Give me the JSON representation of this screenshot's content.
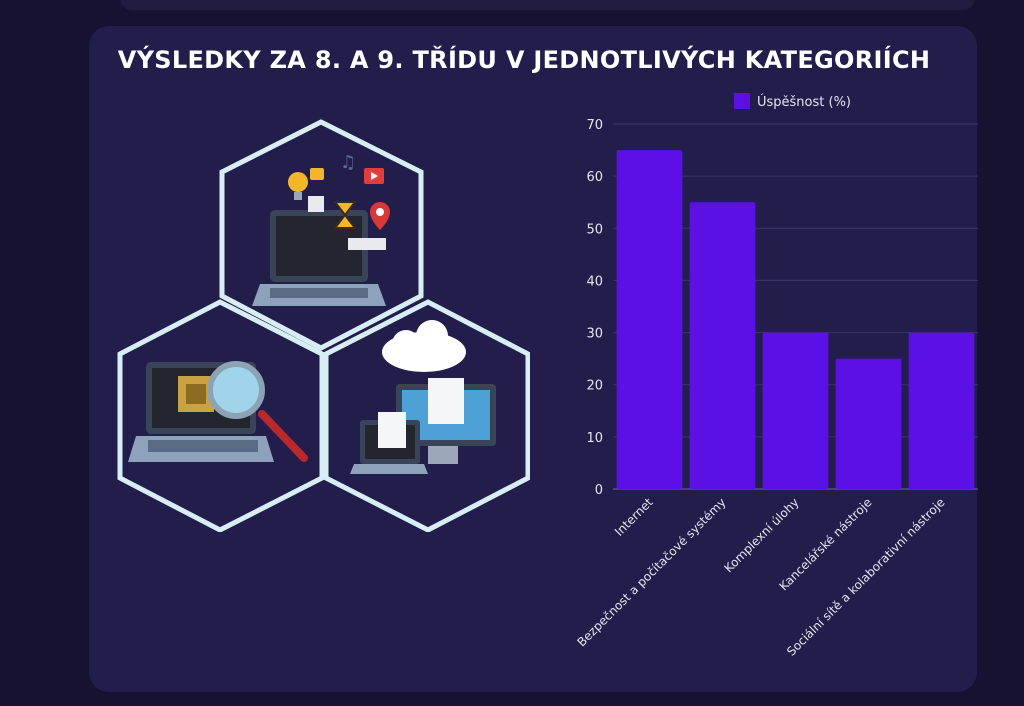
{
  "page": {
    "title": "VÝSLEDKY ZA 8. A 9. TŘÍDU V JEDNOTLIVÝCH KATEGORIÍCH"
  },
  "colors": {
    "background": "#171232",
    "card": "#231d4b",
    "bar": "#5b10e6",
    "hexagon_stroke": "#d8eef5"
  },
  "illustration": {
    "icons": [
      "laptop-apps-icon",
      "laptop-magnifier-chip-icon",
      "cloud-computers-icon"
    ]
  },
  "chart_data": {
    "type": "bar",
    "categories": [
      "Internet",
      "Bezpečnost a počítačové systémy",
      "Komplexní úlohy",
      "Kancelářské nástroje",
      "Sociální sítě a kolaborativní nástroje"
    ],
    "series": [
      {
        "name": "Úspěšnost (%)",
        "values": [
          65,
          55,
          30,
          25,
          30
        ]
      }
    ],
    "title": "",
    "xlabel": "",
    "ylabel": "",
    "ylim": [
      0,
      70
    ],
    "yticks": [
      0,
      10,
      20,
      30,
      40,
      50,
      60,
      70
    ],
    "grid": true,
    "legend": "top-center"
  }
}
